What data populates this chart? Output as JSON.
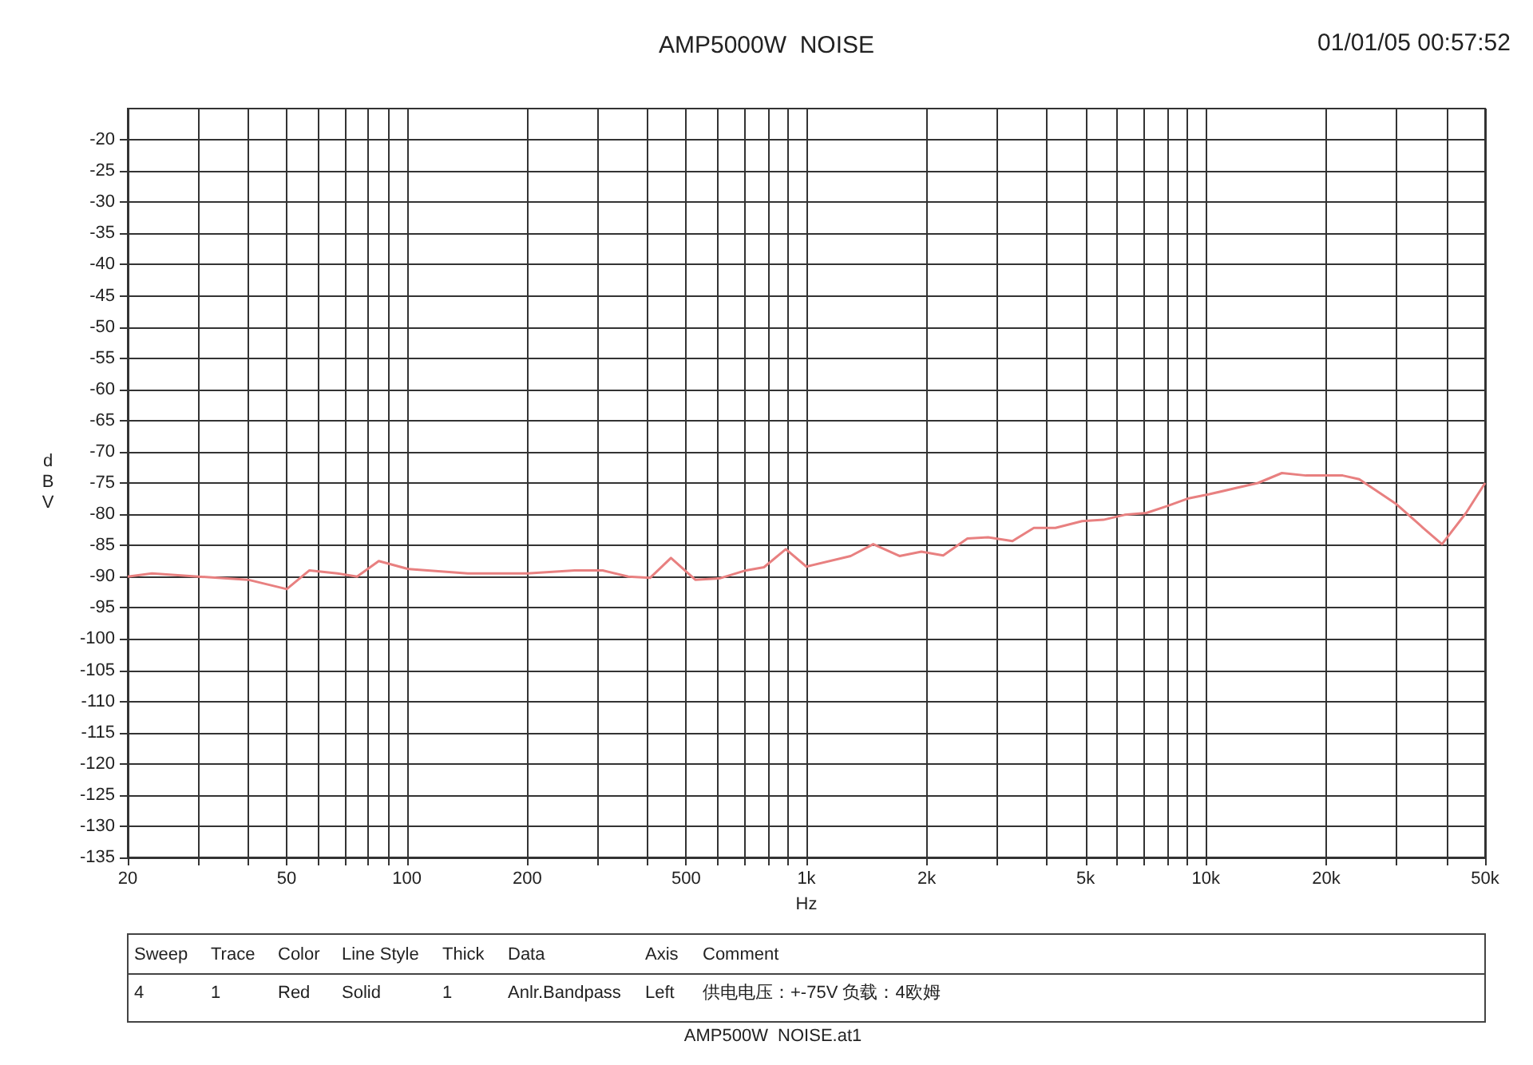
{
  "chart_data": {
    "type": "line",
    "title": "AMP5000W  NOISE",
    "xlabel": "Hz",
    "ylabel": "dBV",
    "log": "x",
    "grid": true,
    "marker": "none",
    "line_style": "solid",
    "xlim": [
      20,
      50000
    ],
    "ylim": [
      -135,
      -15
    ],
    "xticks": [
      20,
      {
        "value": 30,
        "label": null
      },
      {
        "value": 40,
        "label": null
      },
      50,
      {
        "value": 60,
        "label": null
      },
      {
        "value": 70,
        "label": null
      },
      {
        "value": 80,
        "label": null
      },
      {
        "value": 90,
        "label": null
      },
      100,
      200,
      {
        "value": 300,
        "label": null
      },
      {
        "value": 400,
        "label": null
      },
      500,
      {
        "value": 600,
        "label": null
      },
      {
        "value": 700,
        "label": null
      },
      {
        "value": 800,
        "label": null
      },
      {
        "value": 900,
        "label": null
      },
      {
        "value": 1000,
        "label": "1k"
      },
      {
        "value": 2000,
        "label": "2k"
      },
      {
        "value": 3000,
        "label": null
      },
      {
        "value": 4000,
        "label": null
      },
      {
        "value": 5000,
        "label": "5k"
      },
      {
        "value": 6000,
        "label": null
      },
      {
        "value": 7000,
        "label": null
      },
      {
        "value": 8000,
        "label": null
      },
      {
        "value": 9000,
        "label": null
      },
      {
        "value": 10000,
        "label": "10k"
      },
      {
        "value": 20000,
        "label": "20k"
      },
      {
        "value": 30000,
        "label": null
      },
      {
        "value": 40000,
        "label": null
      },
      {
        "value": 50000,
        "label": "50k"
      }
    ],
    "yticks": [
      -135,
      -130,
      -125,
      -120,
      -115,
      -110,
      -105,
      -100,
      -95,
      -90,
      -85,
      -80,
      -75,
      -70,
      -65,
      -60,
      -55,
      -50,
      -45,
      -40,
      -35,
      -30,
      -25,
      -20
    ],
    "annotations": [
      "01/01/05 00:57:52",
      "Sweep",
      "Trace",
      "Color",
      "Line Style",
      "Thick",
      "Data",
      "Axis",
      "Comment",
      "4",
      "1",
      "Red",
      "Solid",
      "1",
      "Anlr.Bandpass",
      "Left",
      "供电电压：+-75V 负载：4欧姆",
      "AMP500W  NOISE.at1"
    ],
    "series": [
      {
        "color": "#e88080",
        "x": [
          20,
          23,
          30,
          40,
          50,
          57,
          67,
          75,
          85,
          101,
          142,
          200,
          263,
          309,
          358,
          406,
          458,
          527,
          605,
          706,
          783,
          888,
          1000,
          1290,
          1470,
          1710,
          1940,
          2200,
          2530,
          2850,
          3280,
          3710,
          4200,
          4900,
          5540,
          6260,
          7100,
          8000,
          9000,
          10200,
          11900,
          13500,
          15500,
          17800,
          22000,
          24200,
          30000,
          35000,
          39000,
          44800,
          50000
        ],
        "values": [
          -90,
          -89.5,
          -90,
          -90.5,
          -92,
          -89,
          -89.5,
          -90,
          -87.5,
          -88.8,
          -89.5,
          -89.5,
          -89,
          -89,
          -90,
          -90.2,
          -87,
          -90.5,
          -90.3,
          -89,
          -88.5,
          -85.6,
          -88.4,
          -86.7,
          -84.8,
          -86.7,
          -86,
          -86.6,
          -83.9,
          -83.7,
          -84.3,
          -82.2,
          -82.2,
          -81.1,
          -80.9,
          -80.1,
          -79.8,
          -78.7,
          -77.5,
          -76.8,
          -75.8,
          -75,
          -73.4,
          -73.8,
          -73.8,
          -74.4,
          -78.4,
          -82.2,
          -84.8,
          -79.8,
          -75
        ]
      }
    ]
  }
}
